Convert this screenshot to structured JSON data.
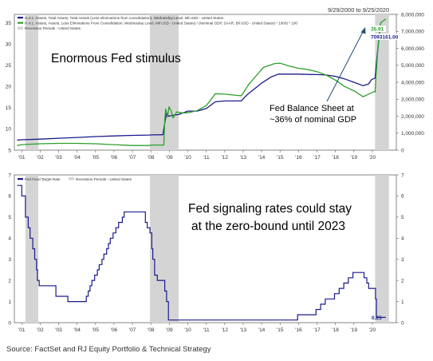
{
  "source": "Source: FactSet and RJ Equity Portfolio & Technical Strategy",
  "colors": {
    "blue": "#1a1a8c",
    "green": "#2ca02c",
    "recession": "#d4d4d4",
    "arrow": "#1f4e79",
    "frame": "#666666"
  },
  "chart_data": [
    {
      "type": "line",
      "date_range": "9/29/2000 to 9/25/2020",
      "annotations": {
        "headline": "Enormous Fed stimulus",
        "note_line1": "Fed Balance Sheet at",
        "note_line2": "~36% of nominal GDP"
      },
      "legend": [
        "H.4.1: Assets, Total Assets, Total Assets (Less eliminations from consolidation), Wednesday Level, Mil USD - United States",
        "H.4.1: Assets, Assets, Less Eliminations From Consolidation, Wednesday Level, Mil USD - United States) / (Nominal GDP, SAAR, Bil USD - United States) * 1000) * 100",
        "Recession Periods - United States"
      ],
      "x_ticks": [
        "'01",
        "'02",
        "'03",
        "'04",
        "'05",
        "'06",
        "'07",
        "'08",
        "'09",
        "'10",
        "'11",
        "'12",
        "'13",
        "'14",
        "'15",
        "'16",
        "'17",
        "'18",
        "'19",
        "'20"
      ],
      "left_axis": {
        "min": 5,
        "max": 37,
        "ticks": [
          "5",
          "10",
          "15",
          "20",
          "25",
          "30",
          "35"
        ]
      },
      "right_axis": {
        "min": 0,
        "max": 8000000,
        "ticks": [
          "0",
          "1,000,000",
          "2,000,000",
          "3,000,000",
          "4,000,000",
          "5,000,000",
          "6,000,000",
          "7,000,000",
          "8,000,000"
        ]
      },
      "value_labels": {
        "green_last": "35.91",
        "blue_last": "7093161.00"
      },
      "recessions": [
        [
          2001.2,
          2001.9
        ],
        [
          2007.95,
          2009.5
        ],
        [
          2020.15,
          2020.9
        ]
      ],
      "series": [
        {
          "axis": "right",
          "color": "#1a1a8c",
          "points": [
            [
              2000.75,
              600000
            ],
            [
              2001,
              610000
            ],
            [
              2002,
              650000
            ],
            [
              2003,
              700000
            ],
            [
              2004,
              750000
            ],
            [
              2005,
              800000
            ],
            [
              2006,
              840000
            ],
            [
              2007,
              870000
            ],
            [
              2007.9,
              890000
            ],
            [
              2008.05,
              900000
            ],
            [
              2008.65,
              910000
            ],
            [
              2008.75,
              1600000
            ],
            [
              2008.85,
              2200000
            ],
            [
              2008.95,
              2000000
            ],
            [
              2009.2,
              2050000
            ],
            [
              2009.5,
              2100000
            ],
            [
              2010,
              2300000
            ],
            [
              2010.5,
              2300000
            ],
            [
              2011,
              2450000
            ],
            [
              2011.5,
              2850000
            ],
            [
              2012,
              2900000
            ],
            [
              2012.9,
              2900000
            ],
            [
              2013.2,
              3250000
            ],
            [
              2013.6,
              3600000
            ],
            [
              2014,
              3950000
            ],
            [
              2014.5,
              4300000
            ],
            [
              2014.9,
              4480000
            ],
            [
              2015.5,
              4480000
            ],
            [
              2016,
              4480000
            ],
            [
              2016.5,
              4460000
            ],
            [
              2017,
              4450000
            ],
            [
              2017.5,
              4430000
            ],
            [
              2018,
              4350000
            ],
            [
              2018.5,
              4200000
            ],
            [
              2019,
              4000000
            ],
            [
              2019.5,
              3800000
            ],
            [
              2019.8,
              3900000
            ],
            [
              2019.95,
              4150000
            ],
            [
              2020.15,
              4250000
            ],
            [
              2020.2,
              4900000
            ],
            [
              2020.3,
              6000000
            ],
            [
              2020.4,
              7000000
            ],
            [
              2020.6,
              7000000
            ],
            [
              2020.73,
              7093161
            ]
          ]
        },
        {
          "axis": "left",
          "color": "#2ca02c",
          "points": [
            [
              2000.75,
              6.1
            ],
            [
              2001,
              6.3
            ],
            [
              2002,
              6.5
            ],
            [
              2003,
              6.6
            ],
            [
              2004,
              6.6
            ],
            [
              2005,
              6.5
            ],
            [
              2006,
              6.3
            ],
            [
              2007,
              6.1
            ],
            [
              2007.9,
              6.1
            ],
            [
              2008.05,
              6.2
            ],
            [
              2008.7,
              6.2
            ],
            [
              2008.75,
              12
            ],
            [
              2008.8,
              14.7
            ],
            [
              2008.9,
              12.8
            ],
            [
              2008.98,
              15.2
            ],
            [
              2009.1,
              14.2
            ],
            [
              2009.2,
              12.6
            ],
            [
              2009.4,
              14
            ],
            [
              2009.7,
              13.8
            ],
            [
              2010,
              13.8
            ],
            [
              2010.5,
              14.3
            ],
            [
              2011,
              15.5
            ],
            [
              2011.5,
              18.3
            ],
            [
              2012,
              18.2
            ],
            [
              2012.9,
              17.8
            ],
            [
              2013.3,
              20.5
            ],
            [
              2013.7,
              22.5
            ],
            [
              2014.1,
              24.5
            ],
            [
              2014.7,
              25.4
            ],
            [
              2015,
              25.5
            ],
            [
              2015.5,
              24.8
            ],
            [
              2016,
              24.3
            ],
            [
              2016.5,
              24
            ],
            [
              2017,
              23.5
            ],
            [
              2017.5,
              22.7
            ],
            [
              2018,
              21.5
            ],
            [
              2018.5,
              20
            ],
            [
              2019,
              19
            ],
            [
              2019.5,
              17.6
            ],
            [
              2019.85,
              18.3
            ],
            [
              2020.1,
              18.8
            ],
            [
              2020.15,
              18.7
            ],
            [
              2020.2,
              22.5
            ],
            [
              2020.3,
              29
            ],
            [
              2020.45,
              35
            ],
            [
              2020.6,
              35.5
            ],
            [
              2020.73,
              35.91
            ]
          ]
        }
      ]
    },
    {
      "type": "line",
      "legend": [
        "Fed Fund Target Rate",
        "Recession Periods - United States"
      ],
      "annotations": {
        "line1": "Fed signaling rates could stay",
        "line2": "at the zero-bound until 2023"
      },
      "x_ticks": [
        "'01",
        "'02",
        "'03",
        "'04",
        "'05",
        "'06",
        "'07",
        "'08",
        "'09",
        "'10",
        "'11",
        "'12",
        "'13",
        "'14",
        "'15",
        "'16",
        "'17",
        "'18",
        "'19",
        "'20"
      ],
      "y_axis": {
        "min": 0,
        "max": 7,
        "ticks": [
          "0",
          "1",
          "2",
          "3",
          "4",
          "5",
          "6",
          "7"
        ]
      },
      "value_labels": {
        "last": "0.25"
      },
      "recessions": [
        [
          2001.2,
          2001.9
        ],
        [
          2007.95,
          2009.5
        ],
        [
          2020.15,
          2020.9
        ]
      ],
      "series": [
        {
          "color": "#1a1a8c",
          "steps": [
            [
              2000.75,
              6.5
            ],
            [
              2001.0,
              6.0
            ],
            [
              2001.2,
              5.0
            ],
            [
              2001.35,
              4.5
            ],
            [
              2001.45,
              4.0
            ],
            [
              2001.6,
              3.5
            ],
            [
              2001.7,
              3.0
            ],
            [
              2001.8,
              2.5
            ],
            [
              2001.85,
              2.0
            ],
            [
              2001.95,
              1.75
            ],
            [
              2002.85,
              1.25
            ],
            [
              2003.5,
              1.0
            ],
            [
              2004.5,
              1.25
            ],
            [
              2004.6,
              1.5
            ],
            [
              2004.7,
              1.75
            ],
            [
              2004.8,
              2.0
            ],
            [
              2004.95,
              2.25
            ],
            [
              2005.1,
              2.5
            ],
            [
              2005.2,
              2.75
            ],
            [
              2005.35,
              3.0
            ],
            [
              2005.45,
              3.25
            ],
            [
              2005.6,
              3.5
            ],
            [
              2005.7,
              3.75
            ],
            [
              2005.8,
              4.0
            ],
            [
              2005.95,
              4.25
            ],
            [
              2006.1,
              4.5
            ],
            [
              2006.25,
              4.75
            ],
            [
              2006.45,
              5.0
            ],
            [
              2006.55,
              5.25
            ],
            [
              2007.7,
              4.75
            ],
            [
              2007.8,
              4.5
            ],
            [
              2007.95,
              4.25
            ],
            [
              2008.05,
              3.5
            ],
            [
              2008.1,
              3.0
            ],
            [
              2008.2,
              2.25
            ],
            [
              2008.35,
              2.0
            ],
            [
              2008.75,
              1.5
            ],
            [
              2008.85,
              1.0
            ],
            [
              2008.95,
              0.125
            ],
            [
              2015.95,
              0.375
            ],
            [
              2016.95,
              0.625
            ],
            [
              2017.2,
              0.875
            ],
            [
              2017.45,
              1.125
            ],
            [
              2017.95,
              1.375
            ],
            [
              2018.2,
              1.625
            ],
            [
              2018.45,
              1.875
            ],
            [
              2018.7,
              2.125
            ],
            [
              2018.95,
              2.375
            ],
            [
              2019.55,
              2.125
            ],
            [
              2019.7,
              1.875
            ],
            [
              2019.8,
              1.625
            ],
            [
              2020.17,
              1.125
            ],
            [
              2020.22,
              0.25
            ],
            [
              2020.73,
              0.25
            ]
          ]
        }
      ]
    }
  ]
}
